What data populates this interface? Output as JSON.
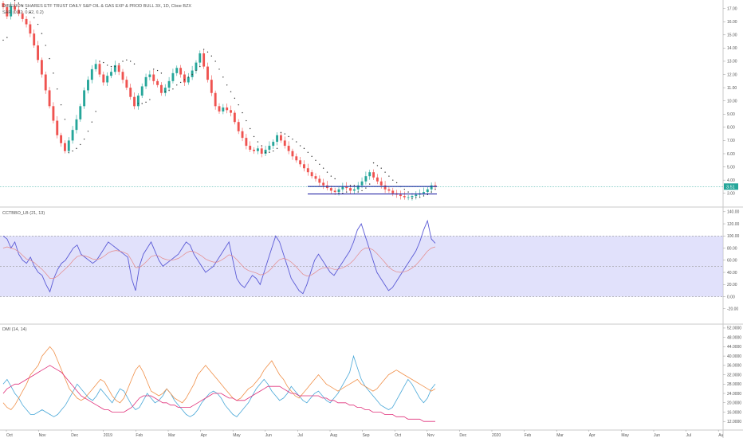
{
  "header": {
    "title": "DIREXION SHARES ETF TRUST DAILY S&P OIL & GAS EXP & PROD BULL 3X, 1D, Cboe BZX",
    "sar_label": "SAR (0.02, 0.02, 0.2)",
    "price_tag": "3.51"
  },
  "colors": {
    "up": "#26a69a",
    "down": "#ef5350",
    "stoch_band": "#c8c8f8",
    "stoch_line": "#5b5bd6",
    "stoch_signal": "#e58a8a",
    "dmi_plus": "#4aa8d8",
    "dmi_minus": "#f0904a",
    "adx": "#e0307a",
    "support_line": "#2a2aa8"
  },
  "chart_data": [
    {
      "type": "candlestick",
      "title": "DIREXION SHARES ETF TRUST DAILY S&P OIL & GAS EXP & PROD BULL 3X, 1D, Cboe BZX",
      "y_ticks": [
        "17.00",
        "16.00",
        "15.00",
        "14.00",
        "13.00",
        "12.00",
        "11.00",
        "10.00",
        "9.00",
        "8.00",
        "7.00",
        "6.00",
        "5.00",
        "4.00",
        "3.00"
      ],
      "ylim": [
        2.2,
        17.4
      ],
      "current_price": 3.51,
      "support_lines": [
        3.51,
        2.95
      ],
      "closes": [
        17.1,
        16.4,
        17.2,
        16.9,
        16.6,
        16.2,
        15.8,
        15.1,
        14.2,
        13.1,
        12.0,
        10.8,
        9.6,
        8.5,
        7.4,
        6.8,
        6.2,
        7.0,
        7.8,
        8.6,
        9.6,
        10.8,
        11.6,
        12.4,
        12.8,
        12.0,
        11.4,
        11.9,
        12.2,
        12.7,
        12.2,
        11.6,
        11.0,
        10.3,
        9.6,
        10.4,
        11.1,
        11.8,
        12.0,
        11.5,
        11.2,
        10.6,
        11.0,
        11.5,
        12.1,
        12.5,
        12.0,
        11.4,
        11.8,
        12.3,
        12.9,
        13.6,
        12.6,
        11.6,
        10.6,
        9.6,
        9.2,
        9.5,
        9.3,
        9.1,
        8.4,
        7.7,
        7.2,
        6.6,
        6.3,
        6.2,
        6.4,
        6.0,
        6.3,
        6.6,
        6.9,
        7.4,
        7.0,
        6.6,
        6.2,
        5.8,
        5.5,
        5.2,
        4.9,
        4.6,
        4.3,
        4.1,
        3.8,
        3.6,
        3.4,
        3.2,
        3.1,
        3.3,
        3.5,
        3.4,
        3.2,
        3.3,
        3.6,
        3.9,
        4.3,
        4.6,
        4.2,
        3.9,
        3.6,
        3.3,
        3.2,
        3.0,
        2.9,
        2.8,
        2.7,
        2.7,
        2.8,
        2.9,
        3.0,
        3.1,
        3.3,
        3.6,
        3.51
      ],
      "sar": [
        14.6,
        14.8,
        17.8,
        17.6,
        17.4,
        17.2,
        17.0,
        16.7,
        16.3,
        15.8,
        15.1,
        14.2,
        13.2,
        12.1,
        10.9,
        9.7,
        8.6,
        6.1,
        6.2,
        6.4,
        6.7,
        7.1,
        7.7,
        8.4,
        9.2,
        13.0,
        12.9,
        12.7,
        12.6,
        12.6,
        12.8,
        13.0,
        13.1,
        13.0,
        12.8,
        9.8,
        9.8,
        9.9,
        10.1,
        12.4,
        12.3,
        12.1,
        10.7,
        10.8,
        10.9,
        11.2,
        11.4,
        11.6,
        11.8,
        12.0,
        12.3,
        12.6,
        13.9,
        13.7,
        13.4,
        13.0,
        12.4,
        11.8,
        11.2,
        10.7,
        10.2,
        9.7,
        9.1,
        8.5,
        7.9,
        7.3,
        6.9,
        6.6,
        6.1,
        6.1,
        6.2,
        6.4,
        7.6,
        7.5,
        7.3,
        7.1,
        6.9,
        6.6,
        6.4,
        6.1,
        5.8,
        5.5,
        5.2,
        4.9,
        4.6,
        4.3,
        4.1,
        3.0,
        3.0,
        3.1,
        3.6,
        3.6,
        3.1,
        3.2,
        3.4,
        3.7,
        5.3,
        5.1,
        4.9,
        4.6,
        4.3,
        4.0,
        3.8,
        3.5,
        3.3,
        3.1,
        2.6,
        2.7,
        2.7,
        2.8,
        2.9,
        3.1,
        3.3
      ]
    },
    {
      "type": "line",
      "title": "CCTBBO_LB (21, 13)",
      "y_ticks": [
        "140.00",
        "120.00",
        "100.00",
        "80.00",
        "60.00",
        "40.00",
        "20.00",
        "0.00",
        "-20.00"
      ],
      "ylim": [
        -40,
        145
      ],
      "band": [
        0,
        100
      ],
      "series": [
        {
          "values": [
            100,
            95,
            80,
            90,
            70,
            60,
            55,
            65,
            50,
            40,
            35,
            20,
            8,
            30,
            45,
            55,
            60,
            70,
            80,
            85,
            70,
            65,
            60,
            55,
            60,
            70,
            80,
            90,
            85,
            80,
            75,
            70,
            65,
            30,
            10,
            50,
            70,
            80,
            90,
            75,
            60,
            50,
            55,
            60,
            65,
            70,
            80,
            90,
            85,
            70,
            60,
            50,
            40,
            45,
            50,
            60,
            70,
            80,
            90,
            60,
            30,
            20,
            15,
            25,
            35,
            30,
            20,
            40,
            60,
            80,
            100,
            90,
            70,
            50,
            30,
            20,
            10,
            5,
            20,
            40,
            60,
            70,
            60,
            50,
            40,
            35,
            45,
            55,
            65,
            75,
            90,
            110,
            120,
            100,
            80,
            60,
            40,
            30,
            20,
            10,
            15,
            25,
            35,
            45,
            55,
            65,
            75,
            90,
            110,
            125,
            95,
            88
          ]
        },
        {
          "values": [
            80,
            82,
            80,
            78,
            74,
            68,
            62,
            60,
            56,
            50,
            45,
            38,
            30,
            30,
            34,
            40,
            46,
            52,
            60,
            66,
            68,
            67,
            65,
            62,
            61,
            63,
            67,
            72,
            75,
            76,
            75,
            73,
            70,
            60,
            48,
            48,
            53,
            59,
            66,
            68,
            67,
            63,
            61,
            60,
            61,
            63,
            67,
            72,
            75,
            74,
            71,
            67,
            62,
            59,
            57,
            57,
            60,
            64,
            69,
            67,
            61,
            54,
            47,
            43,
            41,
            39,
            36,
            37,
            41,
            47,
            55,
            61,
            63,
            61,
            57,
            51,
            44,
            37,
            34,
            35,
            39,
            44,
            47,
            48,
            47,
            45,
            45,
            47,
            50,
            54,
            60,
            68,
            76,
            80,
            80,
            77,
            71,
            64,
            57,
            49,
            44,
            41,
            40,
            41,
            43,
            47,
            52,
            59,
            67,
            75,
            80,
            82
          ]
        }
      ]
    },
    {
      "type": "line",
      "title": "DMI (14, 14)",
      "y_ticks": [
        "52.0000",
        "48.0000",
        "44.0000",
        "40.0000",
        "36.0000",
        "32.0000",
        "28.0000",
        "24.0000",
        "20.0000",
        "16.0000",
        "12.0000"
      ],
      "ylim": [
        9,
        53
      ],
      "series": [
        {
          "values": [
            28,
            30,
            27,
            24,
            22,
            19,
            17,
            15,
            15,
            16,
            17,
            16,
            15,
            14,
            15,
            17,
            19,
            22,
            25,
            28,
            26,
            24,
            22,
            21,
            23,
            26,
            24,
            22,
            20,
            23,
            26,
            25,
            22,
            19,
            17,
            18,
            21,
            24,
            22,
            20,
            21,
            23,
            26,
            24,
            21,
            19,
            17,
            15,
            14,
            15,
            17,
            20,
            22,
            24,
            25,
            24,
            22,
            19,
            17,
            15,
            14,
            16,
            18,
            20,
            23,
            26,
            28,
            30,
            28,
            25,
            23,
            21,
            22,
            24,
            27,
            25,
            23,
            21,
            20,
            22,
            24,
            25,
            23,
            21,
            20,
            22,
            24,
            27,
            30,
            33,
            40,
            35,
            30,
            27,
            25,
            23,
            21,
            19,
            18,
            17,
            18,
            21,
            24,
            27,
            30,
            28,
            25,
            22,
            20,
            22,
            26,
            28
          ]
        },
        {
          "values": [
            20,
            18,
            17,
            19,
            22,
            25,
            28,
            32,
            34,
            36,
            40,
            42,
            44,
            42,
            38,
            34,
            30,
            26,
            24,
            22,
            21,
            22,
            24,
            26,
            28,
            30,
            29,
            26,
            23,
            21,
            20,
            22,
            26,
            30,
            34,
            36,
            33,
            29,
            25,
            24,
            23,
            24,
            26,
            24,
            22,
            21,
            20,
            22,
            25,
            28,
            32,
            34,
            36,
            34,
            32,
            30,
            28,
            26,
            24,
            22,
            21,
            22,
            24,
            26,
            27,
            29,
            31,
            34,
            36,
            38,
            35,
            32,
            30,
            27,
            25,
            23,
            22,
            24,
            26,
            28,
            30,
            32,
            30,
            28,
            27,
            26,
            25,
            26,
            27,
            28,
            29,
            30,
            28,
            27,
            26,
            25,
            26,
            28,
            30,
            32,
            33,
            34,
            33,
            32,
            31,
            30,
            29,
            28,
            27,
            26,
            25,
            26
          ]
        },
        {
          "values": [
            24,
            26,
            27,
            28,
            28,
            29,
            30,
            31,
            32,
            33,
            34,
            35,
            36,
            35,
            34,
            33,
            31,
            29,
            27,
            25,
            23,
            22,
            21,
            20,
            19,
            18,
            17,
            17,
            16,
            16,
            16,
            16,
            17,
            18,
            20,
            22,
            23,
            23,
            23,
            22,
            21,
            20,
            20,
            19,
            19,
            18,
            18,
            18,
            18,
            19,
            20,
            21,
            22,
            23,
            24,
            24,
            24,
            23,
            22,
            22,
            21,
            21,
            21,
            22,
            23,
            24,
            25,
            26,
            27,
            27,
            27,
            27,
            26,
            25,
            24,
            24,
            23,
            23,
            23,
            23,
            23,
            23,
            22,
            22,
            21,
            21,
            20,
            20,
            20,
            19,
            19,
            18,
            18,
            17,
            17,
            16,
            16,
            16,
            15,
            15,
            15,
            14,
            14,
            14,
            13,
            13,
            13,
            13,
            12,
            12,
            12,
            12
          ]
        }
      ]
    }
  ],
  "x_axis": {
    "labels": [
      "Oct",
      "Nov",
      "Dec",
      "2019",
      "Feb",
      "Mar",
      "Apr",
      "May",
      "Jun",
      "Jul",
      "Aug",
      "Sep",
      "Oct",
      "Nov",
      "Dec",
      "2020",
      "Feb",
      "Mar",
      "Apr",
      "May",
      "Jun",
      "Jul",
      "Au"
    ]
  }
}
